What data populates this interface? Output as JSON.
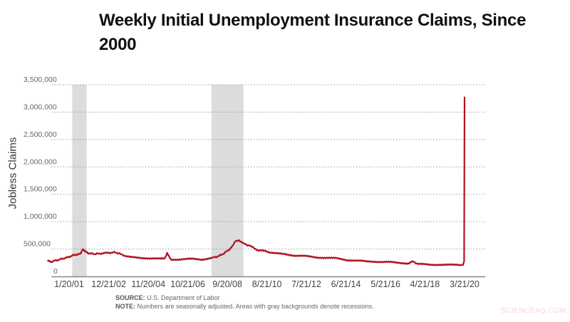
{
  "title": "Weekly Initial Unemployment Insurance Claims, Since 2000",
  "notes": {
    "source_label": "SOURCE:",
    "source_text": " U.S. Department of Labor",
    "note_label": "NOTE:",
    "note_text": " Numbers are seasonally adjusted. Areas with gray backgrounds denote recessions."
  },
  "watermark": "SCIENCEAQ.COM",
  "colors": {
    "line": "#b3121e",
    "recession": "#dcdcdc",
    "grid": "#999999",
    "axis": "#888888",
    "text": "#555555"
  },
  "chart_data": {
    "type": "line",
    "title": "Weekly Initial Unemployment Insurance Claims, Since 2000",
    "xlabel": "",
    "ylabel": "Jobless Claims",
    "ylim": [
      0,
      3500000
    ],
    "yticks": [
      0,
      500000,
      1000000,
      1500000,
      2000000,
      2500000,
      3000000,
      3500000
    ],
    "ytick_labels": [
      "0",
      "500,000",
      "1,000,000",
      "1,500,000",
      "2,000,000",
      "2,500,000",
      "3,000,000",
      "3,500,000"
    ],
    "xtick_labels": [
      "1/20/01",
      "12/21/02",
      "11/20/04",
      "10/21/06",
      "9/20/08",
      "8/21/10",
      "7/21/12",
      "6/21/14",
      "5/21/16",
      "4/21/18",
      "3/21/20"
    ],
    "xtick_years": [
      2001.05,
      2002.97,
      2004.89,
      2006.8,
      2008.72,
      2010.64,
      2012.55,
      2014.47,
      2016.39,
      2018.3,
      2020.22
    ],
    "grid": "horizontal dotted",
    "legend": "none",
    "recessions": [
      {
        "start": 2001.2,
        "end": 2001.9,
        "label": "2001 recession"
      },
      {
        "start": 2007.95,
        "end": 2009.5,
        "label": "Great Recession"
      }
    ],
    "series": [
      {
        "name": "Initial claims (seasonally adjusted)",
        "x": [
          2000.0,
          2000.2,
          2000.5,
          2000.8,
          2001.0,
          2001.2,
          2001.4,
          2001.6,
          2001.72,
          2001.8,
          2002.0,
          2002.3,
          2002.6,
          2003.0,
          2003.3,
          2003.6,
          2004.0,
          2004.5,
          2005.0,
          2005.5,
          2005.7,
          2005.8,
          2006.0,
          2006.5,
          2007.0,
          2007.5,
          2008.0,
          2008.3,
          2008.6,
          2008.9,
          2009.1,
          2009.25,
          2009.5,
          2009.8,
          2010.2,
          2010.6,
          2011.0,
          2011.5,
          2012.0,
          2012.5,
          2013.0,
          2013.5,
          2014.0,
          2014.5,
          2015.0,
          2015.5,
          2016.0,
          2016.5,
          2017.0,
          2017.5,
          2017.7,
          2018.0,
          2018.5,
          2019.0,
          2019.5,
          2020.0,
          2020.15,
          2020.2,
          2020.22
        ],
        "values": [
          285000,
          270000,
          300000,
          330000,
          350000,
          380000,
          400000,
          410000,
          510000,
          460000,
          420000,
          410000,
          420000,
          430000,
          440000,
          400000,
          350000,
          340000,
          330000,
          320000,
          340000,
          420000,
          310000,
          310000,
          320000,
          310000,
          340000,
          370000,
          430000,
          520000,
          640000,
          665000,
          600000,
          560000,
          480000,
          460000,
          420000,
          410000,
          380000,
          370000,
          350000,
          340000,
          330000,
          300000,
          290000,
          270000,
          270000,
          265000,
          245000,
          240000,
          270000,
          225000,
          215000,
          215000,
          210000,
          210000,
          215000,
          282000,
          3283000
        ]
      }
    ]
  }
}
